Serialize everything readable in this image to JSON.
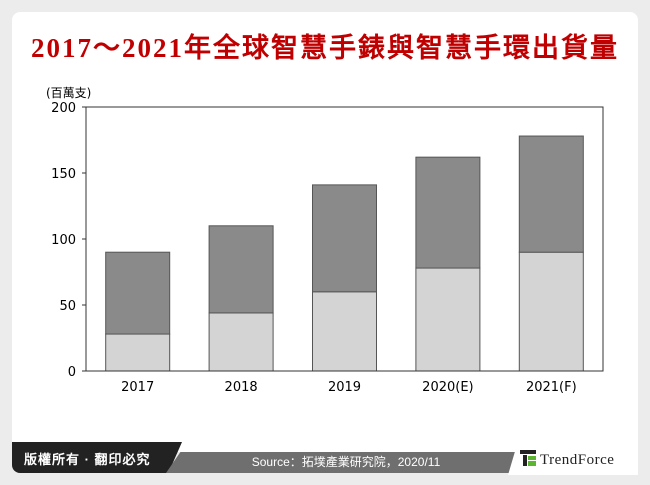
{
  "header": {
    "title": "2017～2021年全球智慧手錶與智慧手環出貨量"
  },
  "footer": {
    "copyright": "版權所有 · 翻印必究",
    "source": "Source：拓墣產業研究院，2020/11",
    "logo_text": "TrendForce"
  },
  "chart_data": {
    "type": "bar",
    "stacked": true,
    "title": "2017～2021年全球智慧手錶與智慧手環出貨量",
    "unit_label": "(百萬支)",
    "xlabel": "",
    "ylabel": "",
    "categories": [
      "2017",
      "2018",
      "2019",
      "2020(E)",
      "2021(F)"
    ],
    "series": [
      {
        "values": [
          28,
          44,
          60,
          78,
          90
        ],
        "color": "#d4d4d4"
      },
      {
        "values": [
          62,
          66,
          81,
          84,
          88
        ],
        "color": "#8a8a8a"
      }
    ],
    "ylim": [
      0,
      200
    ],
    "yticks": [
      0,
      50,
      100,
      150,
      200
    ],
    "grid": false,
    "legend": "none"
  },
  "colors": {
    "title": "#c00000",
    "footer_dark": "#222222",
    "footer_gray": "#6f6f6f",
    "logo_green": "#5cb531"
  }
}
